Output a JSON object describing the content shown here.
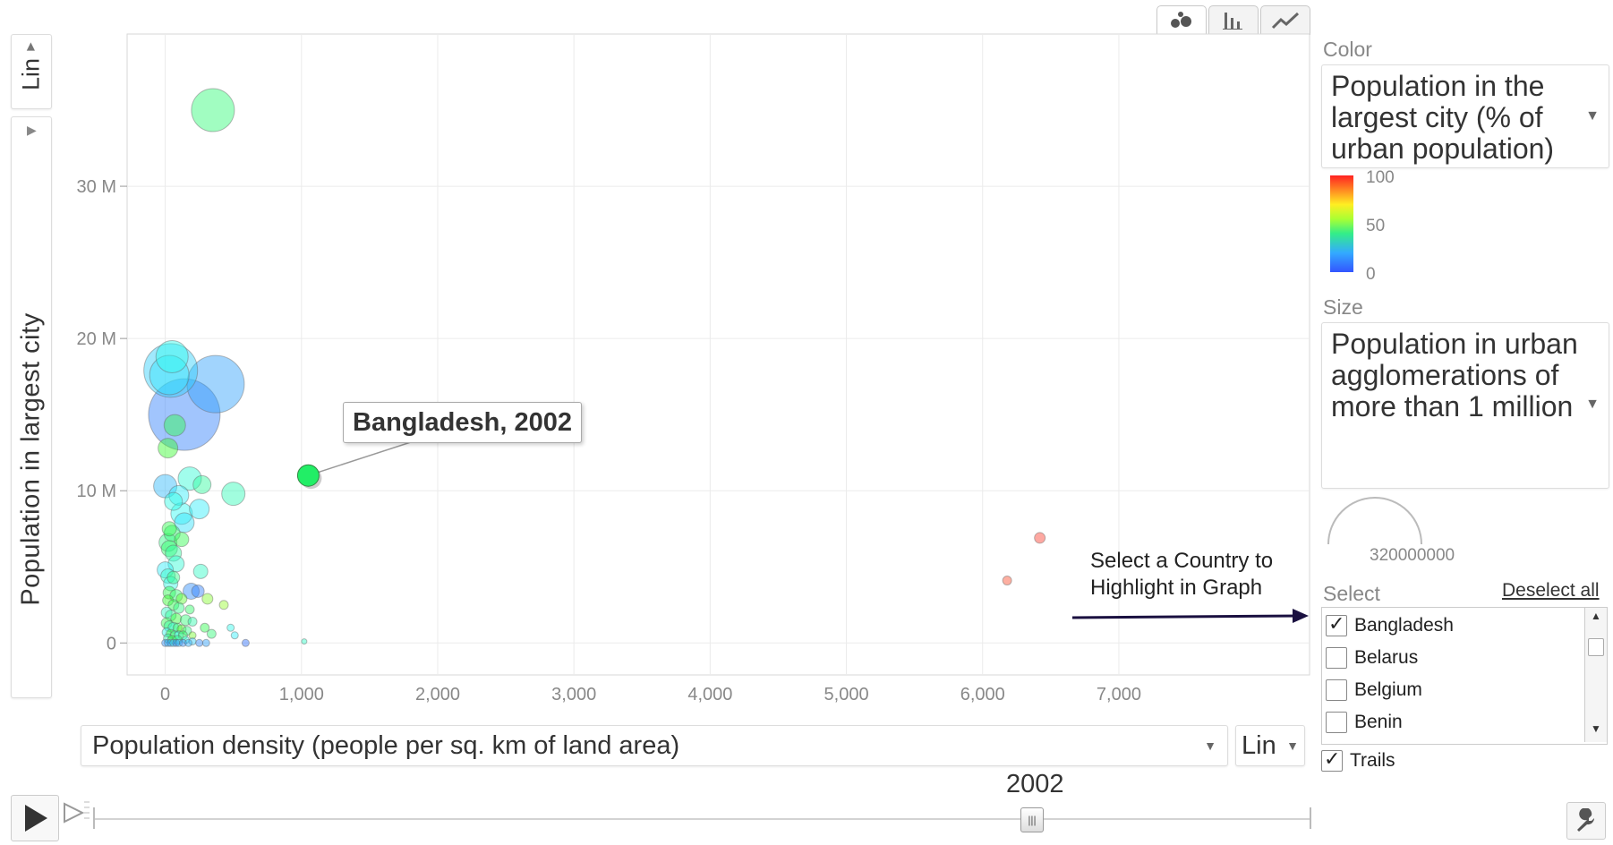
{
  "tabs": [
    {
      "icon": "bubble-chart-icon",
      "active": true
    },
    {
      "icon": "bar-chart-icon",
      "active": false
    },
    {
      "icon": "line-chart-icon",
      "active": false
    }
  ],
  "y_axis": {
    "scale": "Lin",
    "label": "Population in largest city"
  },
  "x_axis": {
    "selector": "Population density (people per sq. km of land area)",
    "scale": "Lin"
  },
  "annotation": {
    "tooltip": "Bangladesh, 2002",
    "hint_line1": "Select a Country to",
    "hint_line2": "Highlight in Graph"
  },
  "player": {
    "year": "2002"
  },
  "panel": {
    "color_label": "Color",
    "color_value": "Population in the largest city (% of urban population)",
    "color_legend": {
      "max": "100",
      "mid": "50",
      "min": "0"
    },
    "size_label": "Size",
    "size_value": "Population in urban agglomerations of more than 1 million",
    "size_legend_value": "320000000",
    "select_label": "Select",
    "deselect_all": "Deselect all",
    "countries": [
      {
        "name": "Bangladesh",
        "checked": true
      },
      {
        "name": "Belarus",
        "checked": false
      },
      {
        "name": "Belgium",
        "checked": false
      },
      {
        "name": "Benin",
        "checked": false
      }
    ],
    "trails_label": "Trails",
    "trails_checked": true
  },
  "colors": {
    "highlight": "#22ee66",
    "hint_arrow": "#1a1040",
    "grid": "#ebebeb"
  },
  "chart_data": {
    "type": "scatter",
    "title": "",
    "xlabel": "Population density (people per sq. km of land area)",
    "ylabel": "Population in largest city",
    "xlim": [
      -280,
      8400
    ],
    "ylim": [
      -2100000,
      40000000
    ],
    "x_ticks": [
      {
        "v": 0,
        "label": "0"
      },
      {
        "v": 1000,
        "label": "1,000"
      },
      {
        "v": 2000,
        "label": "2,000"
      },
      {
        "v": 3000,
        "label": "3,000"
      },
      {
        "v": 4000,
        "label": "4,000"
      },
      {
        "v": 5000,
        "label": "5,000"
      },
      {
        "v": 6000,
        "label": "6,000"
      },
      {
        "v": 7000,
        "label": "7,000"
      }
    ],
    "y_ticks": [
      {
        "v": 0,
        "label": "0"
      },
      {
        "v": 10000000,
        "label": "10 M"
      },
      {
        "v": 20000000,
        "label": "20 M"
      },
      {
        "v": 30000000,
        "label": "30 M"
      }
    ],
    "grid": true,
    "highlighted": {
      "name": "Bangladesh, 2002",
      "x": 1050,
      "y": 11000000,
      "color_pct": 40
    },
    "points": [
      {
        "x": 350,
        "y": 35000000,
        "r": 24,
        "c": 40
      },
      {
        "x": 40,
        "y": 17900000,
        "r": 30,
        "c": 18
      },
      {
        "x": 50,
        "y": 18800000,
        "r": 18,
        "c": 25
      },
      {
        "x": 30,
        "y": 17600000,
        "r": 22,
        "c": 20
      },
      {
        "x": 370,
        "y": 17000000,
        "r": 32,
        "c": 12
      },
      {
        "x": 140,
        "y": 15000000,
        "r": 40,
        "c": 8
      },
      {
        "x": 70,
        "y": 14300000,
        "r": 12,
        "c": 45
      },
      {
        "x": 20,
        "y": 12800000,
        "r": 11,
        "c": 50
      },
      {
        "x": 0,
        "y": 10300000,
        "r": 13,
        "c": 15
      },
      {
        "x": 180,
        "y": 10800000,
        "r": 13,
        "c": 28
      },
      {
        "x": 270,
        "y": 10400000,
        "r": 10,
        "c": 35
      },
      {
        "x": 500,
        "y": 9800000,
        "r": 13,
        "c": 32
      },
      {
        "x": 100,
        "y": 9700000,
        "r": 11,
        "c": 22
      },
      {
        "x": 60,
        "y": 9300000,
        "r": 10,
        "c": 26
      },
      {
        "x": 250,
        "y": 8800000,
        "r": 11,
        "c": 22
      },
      {
        "x": 120,
        "y": 8500000,
        "r": 12,
        "c": 24
      },
      {
        "x": 140,
        "y": 7900000,
        "r": 11,
        "c": 20
      },
      {
        "x": 30,
        "y": 7500000,
        "r": 8,
        "c": 45
      },
      {
        "x": 50,
        "y": 7200000,
        "r": 9,
        "c": 40
      },
      {
        "x": 120,
        "y": 6800000,
        "r": 8,
        "c": 45
      },
      {
        "x": 20,
        "y": 6600000,
        "r": 10,
        "c": 38
      },
      {
        "x": 30,
        "y": 6200000,
        "r": 9,
        "c": 42
      },
      {
        "x": 60,
        "y": 5900000,
        "r": 9,
        "c": 35
      },
      {
        "x": 80,
        "y": 5200000,
        "r": 9,
        "c": 28
      },
      {
        "x": 260,
        "y": 4700000,
        "r": 8,
        "c": 30
      },
      {
        "x": 0,
        "y": 4800000,
        "r": 9,
        "c": 22
      },
      {
        "x": 20,
        "y": 4400000,
        "r": 8,
        "c": 30
      },
      {
        "x": 60,
        "y": 4300000,
        "r": 7,
        "c": 38
      },
      {
        "x": 40,
        "y": 3900000,
        "r": 8,
        "c": 26
      },
      {
        "x": 190,
        "y": 3400000,
        "r": 9,
        "c": 10
      },
      {
        "x": 240,
        "y": 3400000,
        "r": 7,
        "c": 8
      },
      {
        "x": 30,
        "y": 3300000,
        "r": 7,
        "c": 45
      },
      {
        "x": 80,
        "y": 3100000,
        "r": 7,
        "c": 40
      },
      {
        "x": 120,
        "y": 2900000,
        "r": 6,
        "c": 55
      },
      {
        "x": 310,
        "y": 2900000,
        "r": 6,
        "c": 60
      },
      {
        "x": 430,
        "y": 2500000,
        "r": 5,
        "c": 62
      },
      {
        "x": 20,
        "y": 2800000,
        "r": 6,
        "c": 50
      },
      {
        "x": 60,
        "y": 2500000,
        "r": 6,
        "c": 45
      },
      {
        "x": 100,
        "y": 2300000,
        "r": 6,
        "c": 38
      },
      {
        "x": 180,
        "y": 2200000,
        "r": 5,
        "c": 42
      },
      {
        "x": 10,
        "y": 2000000,
        "r": 6,
        "c": 30
      },
      {
        "x": 40,
        "y": 1800000,
        "r": 6,
        "c": 36
      },
      {
        "x": 80,
        "y": 1600000,
        "r": 6,
        "c": 48
      },
      {
        "x": 150,
        "y": 1500000,
        "r": 6,
        "c": 40
      },
      {
        "x": 200,
        "y": 1400000,
        "r": 5,
        "c": 33
      },
      {
        "x": 10,
        "y": 1300000,
        "r": 6,
        "c": 45
      },
      {
        "x": 30,
        "y": 1100000,
        "r": 6,
        "c": 35
      },
      {
        "x": 60,
        "y": 1000000,
        "r": 6,
        "c": 30
      },
      {
        "x": 90,
        "y": 1000000,
        "r": 5,
        "c": 42
      },
      {
        "x": 120,
        "y": 900000,
        "r": 5,
        "c": 55
      },
      {
        "x": 160,
        "y": 800000,
        "r": 5,
        "c": 38
      },
      {
        "x": 290,
        "y": 1000000,
        "r": 5,
        "c": 45
      },
      {
        "x": 480,
        "y": 1000000,
        "r": 4,
        "c": 25
      },
      {
        "x": 10,
        "y": 700000,
        "r": 5,
        "c": 25
      },
      {
        "x": 40,
        "y": 600000,
        "r": 5,
        "c": 50
      },
      {
        "x": 70,
        "y": 500000,
        "r": 5,
        "c": 35
      },
      {
        "x": 100,
        "y": 500000,
        "r": 5,
        "c": 28
      },
      {
        "x": 130,
        "y": 500000,
        "r": 5,
        "c": 42
      },
      {
        "x": 200,
        "y": 500000,
        "r": 4,
        "c": 58
      },
      {
        "x": 340,
        "y": 600000,
        "r": 5,
        "c": 40
      },
      {
        "x": 510,
        "y": 500000,
        "r": 4,
        "c": 22
      },
      {
        "x": 20,
        "y": 300000,
        "r": 5,
        "c": 32
      },
      {
        "x": 50,
        "y": 200000,
        "r": 5,
        "c": 48
      },
      {
        "x": 90,
        "y": 200000,
        "r": 5,
        "c": 38
      },
      {
        "x": 150,
        "y": 200000,
        "r": 4,
        "c": 26
      },
      {
        "x": 200,
        "y": 100000,
        "r": 4,
        "c": 18
      },
      {
        "x": 0,
        "y": 0,
        "r": 4,
        "c": 10
      },
      {
        "x": 20,
        "y": 0,
        "r": 4,
        "c": 15
      },
      {
        "x": 40,
        "y": 0,
        "r": 4,
        "c": 12
      },
      {
        "x": 60,
        "y": 0,
        "r": 4,
        "c": 20
      },
      {
        "x": 80,
        "y": 0,
        "r": 4,
        "c": 8
      },
      {
        "x": 100,
        "y": 0,
        "r": 4,
        "c": 16
      },
      {
        "x": 130,
        "y": 0,
        "r": 4,
        "c": 10
      },
      {
        "x": 170,
        "y": 0,
        "r": 4,
        "c": 14
      },
      {
        "x": 250,
        "y": 0,
        "r": 4,
        "c": 9
      },
      {
        "x": 300,
        "y": 0,
        "r": 4,
        "c": 12
      },
      {
        "x": 590,
        "y": 0,
        "r": 4,
        "c": 6
      },
      {
        "x": 1020,
        "y": 100000,
        "r": 3,
        "c": 30
      },
      {
        "x": 6420,
        "y": 6900000,
        "r": 6,
        "c": 98
      },
      {
        "x": 6180,
        "y": 4100000,
        "r": 5,
        "c": 96
      }
    ]
  }
}
